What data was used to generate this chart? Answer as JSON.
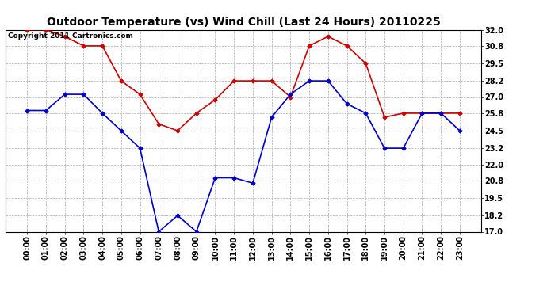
{
  "title": "Outdoor Temperature (vs) Wind Chill (Last 24 Hours) 20110225",
  "copyright_text": "Copyright 2011 Cartronics.com",
  "x_labels": [
    "00:00",
    "01:00",
    "02:00",
    "03:00",
    "04:00",
    "05:00",
    "06:00",
    "07:00",
    "08:00",
    "09:00",
    "10:00",
    "11:00",
    "12:00",
    "13:00",
    "14:00",
    "15:00",
    "16:00",
    "17:00",
    "18:00",
    "19:00",
    "20:00",
    "21:00",
    "22:00",
    "23:00"
  ],
  "temp_data": [
    26.0,
    26.0,
    27.2,
    27.2,
    25.8,
    24.5,
    23.2,
    17.0,
    18.2,
    17.0,
    21.0,
    21.0,
    20.6,
    25.5,
    27.2,
    28.2,
    28.2,
    26.5,
    25.8,
    23.2,
    23.2,
    25.8,
    25.8,
    24.5
  ],
  "wind_chill_data": [
    32.0,
    32.0,
    31.5,
    30.8,
    30.8,
    28.2,
    27.2,
    25.0,
    24.5,
    25.8,
    26.8,
    28.2,
    28.2,
    28.2,
    27.0,
    30.8,
    31.5,
    30.8,
    29.5,
    25.5,
    25.8,
    25.8,
    25.8,
    25.8
  ],
  "temp_color": "#0000cc",
  "wind_chill_color": "#cc0000",
  "bg_color": "#ffffff",
  "plot_bg_color": "#ffffff",
  "grid_color": "#aaaaaa",
  "ylim": [
    17.0,
    32.0
  ],
  "yticks": [
    17.0,
    18.2,
    19.5,
    20.8,
    22.0,
    23.2,
    24.5,
    25.8,
    27.0,
    28.2,
    29.5,
    30.8,
    32.0
  ],
  "title_fontsize": 10,
  "axis_fontsize": 7,
  "copyright_fontsize": 6.5,
  "marker": "D",
  "marker_size": 2.5,
  "line_width": 1.2
}
